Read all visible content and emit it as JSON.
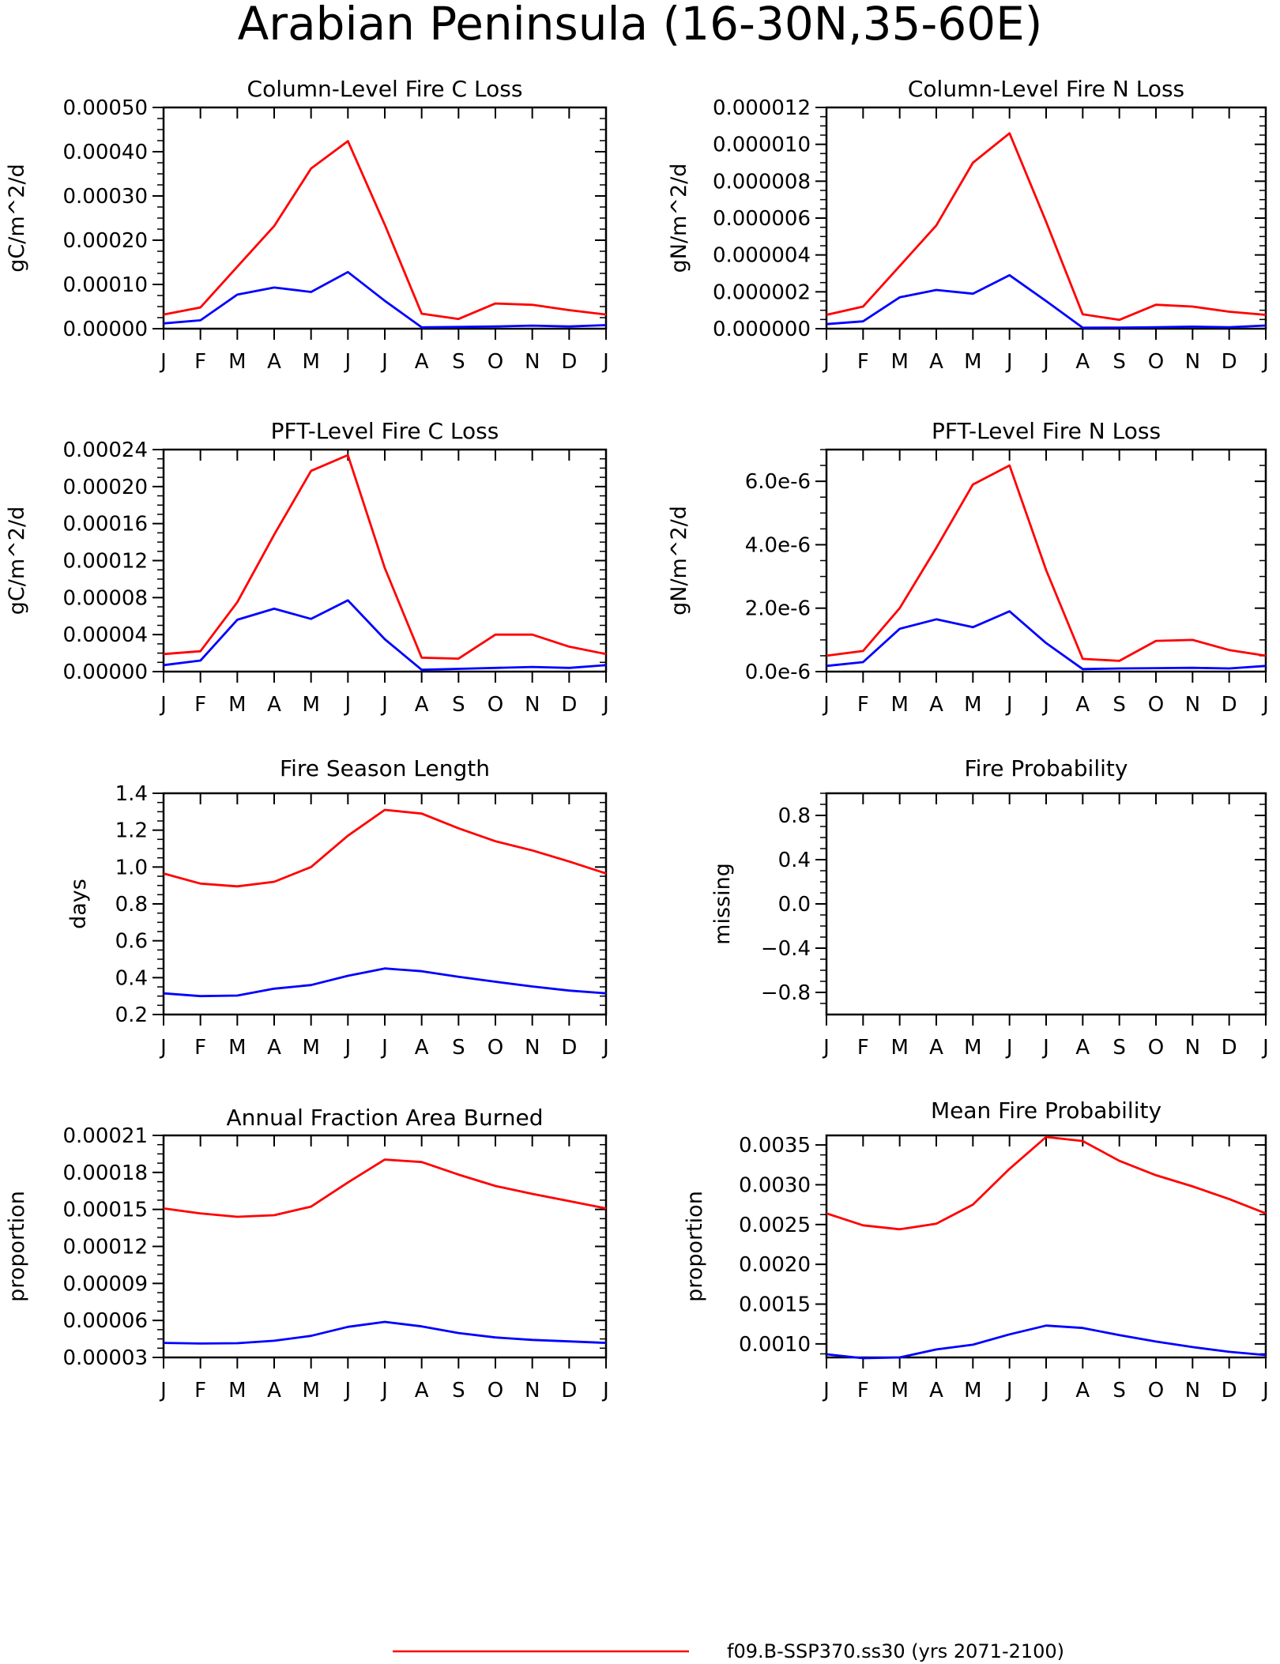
{
  "title": "Arabian Peninsula (16-30N,35-60E)",
  "legend": {
    "entries": [
      {
        "label": "f09.B-SSP370.ss30 (yrs 2071-2100)",
        "color": "#ff0000"
      }
    ]
  },
  "colors": {
    "red": "#ff0000",
    "blue": "#0000ff"
  },
  "chart_data": [
    {
      "type": "line",
      "title": "Column-Level Fire C Loss",
      "ylabel": "gC/m^2/d",
      "categories": [
        "J",
        "F",
        "M",
        "A",
        "M",
        "J",
        "J",
        "A",
        "S",
        "O",
        "N",
        "D",
        "J"
      ],
      "ylim": [
        0,
        0.0005
      ],
      "yticks": [
        0,
        0.0001,
        0.0002,
        0.0003,
        0.0004,
        0.0005
      ],
      "ytick_labels": [
        "0.00000",
        "0.00010",
        "0.00020",
        "0.00030",
        "0.00040",
        "0.00050"
      ],
      "series": [
        {
          "color": "#ff0000",
          "values": [
            3.2e-05,
            4.8e-05,
            0.00014,
            0.000232,
            0.000362,
            0.000424,
            0.000235,
            3.4e-05,
            2.2e-05,
            5.7e-05,
            5.4e-05,
            4.2e-05,
            3.2e-05
          ]
        },
        {
          "color": "#0000ff",
          "values": [
            1.2e-05,
            1.9e-05,
            7.7e-05,
            9.3e-05,
            8.3e-05,
            0.000128,
            6.3e-05,
            3e-06,
            4e-06,
            5e-06,
            7e-06,
            5e-06,
            8e-06
          ]
        }
      ]
    },
    {
      "type": "line",
      "title": "Column-Level Fire N Loss",
      "ylabel": "gN/m^2/d",
      "categories": [
        "J",
        "F",
        "M",
        "A",
        "M",
        "J",
        "J",
        "A",
        "S",
        "O",
        "N",
        "D",
        "J"
      ],
      "ylim": [
        0,
        1.2e-05
      ],
      "yticks": [
        0,
        2e-06,
        4e-06,
        6e-06,
        8e-06,
        1e-05,
        1.2e-05
      ],
      "ytick_labels": [
        "0.000000",
        "0.000002",
        "0.000004",
        "0.000006",
        "0.000008",
        "0.000010",
        "0.000012"
      ],
      "series": [
        {
          "color": "#ff0000",
          "values": [
            7.5e-07,
            1.2e-06,
            3.4e-06,
            5.6e-06,
            9e-06,
            1.06e-05,
            5.8e-06,
            7.8e-07,
            4.8e-07,
            1.3e-06,
            1.2e-06,
            9.2e-07,
            7.5e-07
          ]
        },
        {
          "color": "#0000ff",
          "values": [
            2.5e-07,
            4e-07,
            1.7e-06,
            2.1e-06,
            1.9e-06,
            2.9e-06,
            1.5e-06,
            5e-08,
            6e-08,
            8e-08,
            1.1e-07,
            8e-08,
            1.7e-07
          ]
        }
      ]
    },
    {
      "type": "line",
      "title": "PFT-Level Fire C Loss",
      "ylabel": "gC/m^2/d",
      "categories": [
        "J",
        "F",
        "M",
        "A",
        "M",
        "J",
        "J",
        "A",
        "S",
        "O",
        "N",
        "D",
        "J"
      ],
      "ylim": [
        0,
        0.00024
      ],
      "yticks": [
        0,
        4e-05,
        8e-05,
        0.00012,
        0.00016,
        0.0002,
        0.00024
      ],
      "ytick_labels": [
        "0.00000",
        "0.00004",
        "0.00008",
        "0.00012",
        "0.00016",
        "0.00020",
        "0.00024"
      ],
      "series": [
        {
          "color": "#ff0000",
          "values": [
            1.9e-05,
            2.2e-05,
            7.5e-05,
            0.000148,
            0.000217,
            0.000234,
            0.000112,
            1.5e-05,
            1.4e-05,
            4e-05,
            4e-05,
            2.7e-05,
            1.9e-05
          ]
        },
        {
          "color": "#0000ff",
          "values": [
            7e-06,
            1.2e-05,
            5.6e-05,
            6.8e-05,
            5.7e-05,
            7.7e-05,
            3.5e-05,
            2e-06,
            3e-06,
            4e-06,
            5e-06,
            4e-06,
            7e-06
          ]
        }
      ]
    },
    {
      "type": "line",
      "title": "PFT-Level Fire N Loss",
      "ylabel": "gN/m^2/d",
      "categories": [
        "J",
        "F",
        "M",
        "A",
        "M",
        "J",
        "J",
        "A",
        "S",
        "O",
        "N",
        "D",
        "J"
      ],
      "ylim": [
        0,
        7e-06
      ],
      "yticks": [
        0,
        2e-06,
        4e-06,
        6e-06
      ],
      "ytick_labels": [
        "0.0e-6",
        "2.0e-6",
        "4.0e-6",
        "6.0e-6"
      ],
      "series": [
        {
          "color": "#ff0000",
          "values": [
            5e-07,
            6.5e-07,
            2e-06,
            3.9e-06,
            5.9e-06,
            6.5e-06,
            3.2e-06,
            4e-07,
            3.4e-07,
            9.7e-07,
            1e-06,
            6.8e-07,
            5e-07
          ]
        },
        {
          "color": "#0000ff",
          "values": [
            1.8e-07,
            3e-07,
            1.35e-06,
            1.65e-06,
            1.4e-06,
            1.9e-06,
            9e-07,
            8e-08,
            1e-07,
            1.1e-07,
            1.2e-07,
            1e-07,
            1.8e-07
          ]
        }
      ]
    },
    {
      "type": "line",
      "title": "Fire Season Length",
      "ylabel": "days",
      "categories": [
        "J",
        "F",
        "M",
        "A",
        "M",
        "J",
        "J",
        "A",
        "S",
        "O",
        "N",
        "D",
        "J"
      ],
      "ylim": [
        0.2,
        1.4
      ],
      "yticks": [
        0.2,
        0.4,
        0.6,
        0.8,
        1.0,
        1.2,
        1.4
      ],
      "ytick_labels": [
        "0.2",
        "0.4",
        "0.6",
        "0.8",
        "1.0",
        "1.2",
        "1.4"
      ],
      "series": [
        {
          "color": "#ff0000",
          "values": [
            0.965,
            0.91,
            0.895,
            0.92,
            1.0,
            1.17,
            1.31,
            1.29,
            1.21,
            1.14,
            1.09,
            1.03,
            0.965
          ]
        },
        {
          "color": "#0000ff",
          "values": [
            0.315,
            0.3,
            0.303,
            0.34,
            0.36,
            0.41,
            0.45,
            0.435,
            0.405,
            0.378,
            0.352,
            0.33,
            0.315
          ]
        }
      ]
    },
    {
      "type": "line",
      "title": "Fire Probability",
      "ylabel": "missing",
      "categories": [
        "J",
        "F",
        "M",
        "A",
        "M",
        "J",
        "J",
        "A",
        "S",
        "O",
        "N",
        "D",
        "J"
      ],
      "ylim": [
        -1,
        1
      ],
      "yticks": [
        -0.8,
        -0.4,
        0,
        0.4,
        0.8
      ],
      "ytick_labels": [
        "−0.8",
        "−0.4",
        "0.0",
        "0.4",
        "0.8"
      ],
      "series": []
    },
    {
      "type": "line",
      "title": "Annual Fraction Area Burned",
      "ylabel": "proportion",
      "categories": [
        "J",
        "F",
        "M",
        "A",
        "M",
        "J",
        "J",
        "A",
        "S",
        "O",
        "N",
        "D",
        "J"
      ],
      "ylim": [
        3e-05,
        0.00021
      ],
      "yticks": [
        3e-05,
        6e-05,
        9e-05,
        0.00012,
        0.00015,
        0.00018,
        0.00021
      ],
      "ytick_labels": [
        "0.00003",
        "0.00006",
        "0.00009",
        "0.00012",
        "0.00015",
        "0.00018",
        "0.00021"
      ],
      "series": [
        {
          "color": "#ff0000",
          "values": [
            0.0001508,
            0.0001468,
            0.000144,
            0.0001453,
            0.0001523,
            0.0001718,
            0.0001904,
            0.0001884,
            0.0001782,
            0.000169,
            0.0001626,
            0.0001568,
            0.0001508
          ]
        },
        {
          "color": "#0000ff",
          "values": [
            4.18e-05,
            4.13e-05,
            4.15e-05,
            4.35e-05,
            4.75e-05,
            5.48e-05,
            5.88e-05,
            5.52e-05,
            4.98e-05,
            4.62e-05,
            4.42e-05,
            4.3e-05,
            4.18e-05
          ]
        }
      ]
    },
    {
      "type": "line",
      "title": "Mean Fire Probability",
      "ylabel": "proportion",
      "categories": [
        "J",
        "F",
        "M",
        "A",
        "M",
        "J",
        "J",
        "A",
        "S",
        "O",
        "N",
        "D",
        "J"
      ],
      "ylim": [
        0.00083,
        0.00362
      ],
      "yticks": [
        0.001,
        0.0015,
        0.002,
        0.0025,
        0.003,
        0.0035
      ],
      "ytick_labels": [
        "0.0010",
        "0.0015",
        "0.0020",
        "0.0025",
        "0.0030",
        "0.0035"
      ],
      "series": [
        {
          "color": "#ff0000",
          "values": [
            0.00264,
            0.00249,
            0.00244,
            0.00251,
            0.00275,
            0.0032,
            0.0036,
            0.00355,
            0.0033,
            0.00312,
            0.00298,
            0.00282,
            0.00264
          ]
        },
        {
          "color": "#0000ff",
          "values": [
            0.00087,
            0.00082,
            0.00083,
            0.00093,
            0.00099,
            0.00112,
            0.00123,
            0.0012,
            0.00111,
            0.00103,
            0.00096,
            0.0009,
            0.00086
          ]
        }
      ]
    }
  ]
}
